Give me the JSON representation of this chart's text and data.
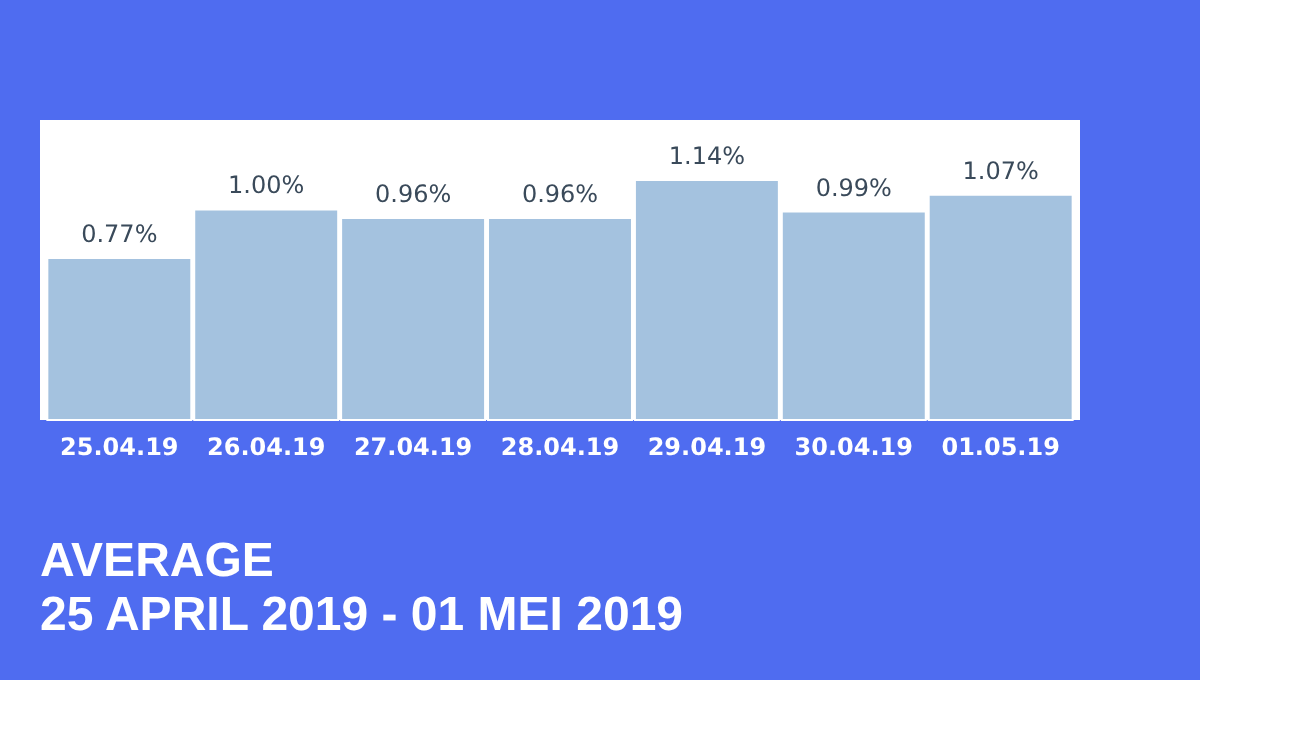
{
  "chart_data": {
    "type": "bar",
    "title": "AVERAGE",
    "subtitle": "25 APRIL 2019 - 01 MEI 2019",
    "categories": [
      "25.04.19",
      "26.04.19",
      "27.04.19",
      "28.04.19",
      "29.04.19",
      "30.04.19",
      "01.05.19"
    ],
    "values": [
      0.77,
      1.0,
      0.96,
      0.96,
      1.14,
      0.99,
      1.07
    ],
    "value_labels": [
      "0.77%",
      "1.00%",
      "0.96%",
      "0.96%",
      "1.14%",
      "0.99%",
      "1.07%"
    ],
    "color": "#a4c2df"
  }
}
